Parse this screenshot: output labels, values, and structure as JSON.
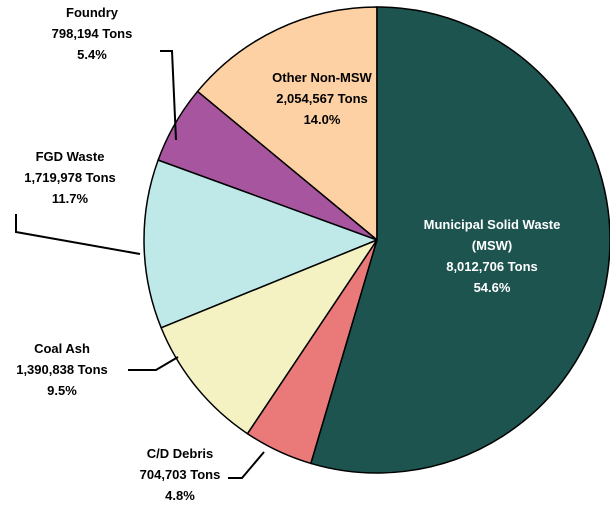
{
  "chart_data": {
    "type": "pie",
    "categories": [
      "Municipal Solid Waste (MSW)",
      "C/D Debris",
      "Coal Ash",
      "FGD Waste",
      "Foundry",
      "Other Non-MSW"
    ],
    "values": [
      8012706,
      704703,
      1390838,
      1719978,
      798194,
      2054567
    ],
    "value_labels": [
      "8,012,706 Tons",
      "704,703 Tons",
      "1,390,838 Tons",
      "1,719,978 Tons",
      "798,194 Tons",
      "2,054,567 Tons"
    ],
    "percent_labels": [
      "54.6%",
      "4.8%",
      "9.5%",
      "11.7%",
      "5.4%",
      "14.0%"
    ],
    "colors": [
      "#1d5450",
      "#ea7a7a",
      "#f4f1c2",
      "#bfe8e8",
      "#a8559f",
      "#fdd1a4"
    ]
  }
}
